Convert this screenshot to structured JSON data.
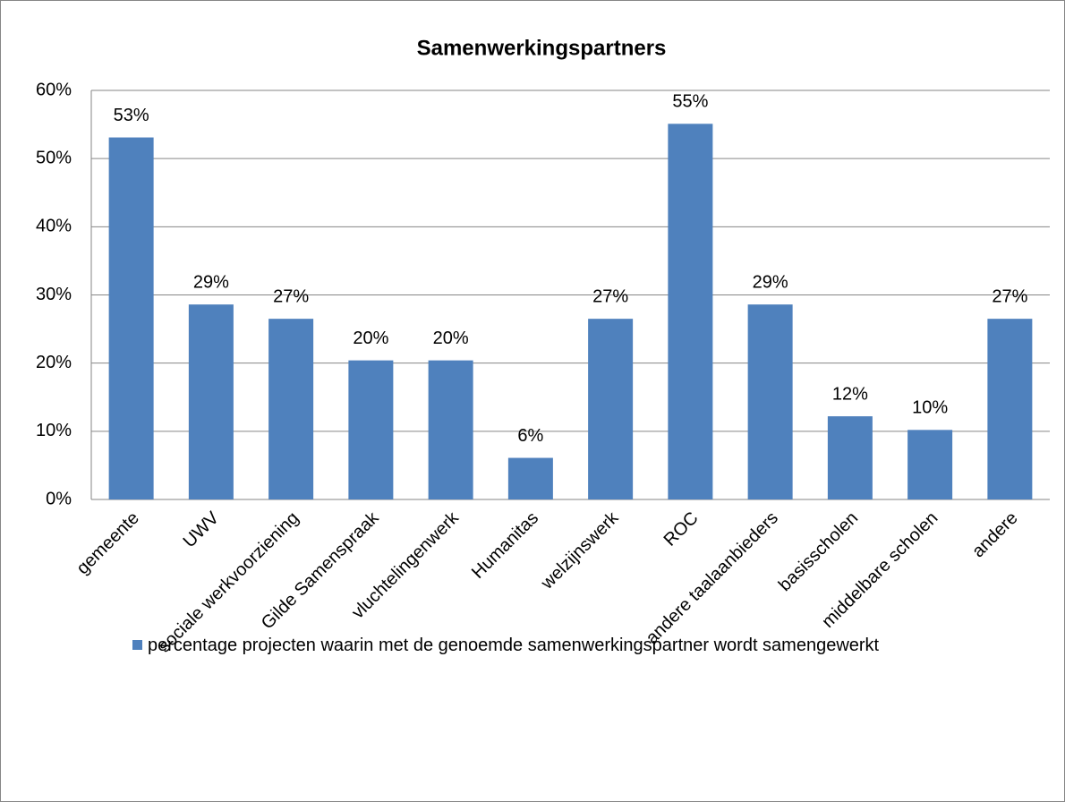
{
  "chart_data": {
    "type": "bar",
    "title": "Samenwerkingspartners",
    "categories": [
      "gemeente",
      "UWV",
      "sociale werkvoorziening",
      "Gilde Samenspraak",
      "vluchtelingenwerk",
      "Humanitas",
      "welzijnswerk",
      "ROC",
      "andere taalaanbieders",
      "basisscholen",
      "middelbare scholen",
      "andere"
    ],
    "series": [
      {
        "name": "percentage projecten waarin met de genoemde samenwerkingspartner wordt samengewerkt",
        "color": "#4f81bd",
        "values": [
          53.1,
          28.6,
          26.5,
          20.4,
          20.4,
          6.1,
          26.5,
          55.1,
          28.6,
          12.2,
          10.2,
          26.5
        ],
        "value_labels": [
          "53%",
          "29%",
          "27%",
          "20%",
          "20%",
          "6%",
          "27%",
          "55%",
          "29%",
          "12%",
          "10%",
          "27%"
        ]
      }
    ],
    "ylim": [
      0,
      60
    ],
    "yticks": [
      {
        "value": 0,
        "label": "0%"
      },
      {
        "value": 10,
        "label": "10%"
      },
      {
        "value": 20,
        "label": "20%"
      },
      {
        "value": 30,
        "label": "30%"
      },
      {
        "value": 40,
        "label": "40%"
      },
      {
        "value": 50,
        "label": "50%"
      },
      {
        "value": 60,
        "label": "60%"
      }
    ],
    "grid": true,
    "legend": "bottom"
  }
}
